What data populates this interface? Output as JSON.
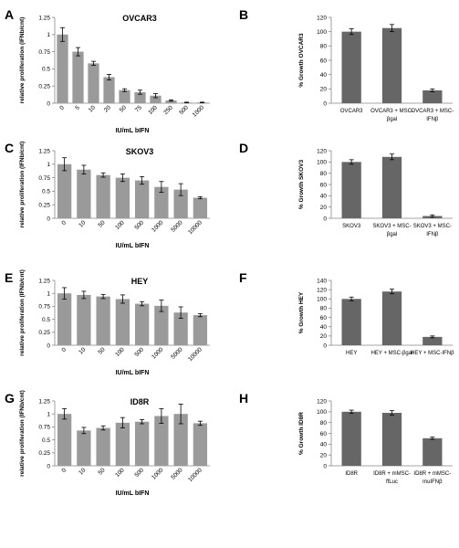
{
  "chart_data": [
    {
      "panel": "A",
      "type": "bar",
      "title": "OVCAR3",
      "xlabel": "IU/mL bIFN",
      "ylabel": "relative proliferation (IFNb/cnt)",
      "categories": [
        "0",
        "5",
        "10",
        "20",
        "50",
        "75",
        "100",
        "250",
        "500",
        "1000"
      ],
      "values": [
        1.0,
        0.75,
        0.58,
        0.38,
        0.19,
        0.16,
        0.11,
        0.04,
        0.01,
        0.01
      ],
      "errors": [
        0.1,
        0.06,
        0.03,
        0.04,
        0.02,
        0.03,
        0.03,
        0.01,
        0.005,
        0.005
      ],
      "ylim": [
        0,
        1.25
      ],
      "yticks": [
        0,
        0.25,
        0.5,
        0.75,
        1,
        1.25
      ],
      "ytick_labels": [
        "0",
        "0.25",
        "0.5",
        "0.75",
        "1",
        "1.25"
      ],
      "bar_color": "#9a9a9a",
      "rotated_x": true
    },
    {
      "panel": "B",
      "type": "bar",
      "title": "",
      "xlabel": "",
      "ylabel": "% Growth OVCAR3",
      "categories": [
        [
          "OVCAR3"
        ],
        [
          "OVCAR3 + MSC-",
          "βgal"
        ],
        [
          "OVCAR3 + MSC-",
          "IFNβ"
        ]
      ],
      "values": [
        100,
        105,
        18
      ],
      "errors": [
        4,
        5,
        2
      ],
      "ylim": [
        0,
        120
      ],
      "yticks": [
        0,
        20,
        40,
        60,
        80,
        100,
        120
      ],
      "ytick_labels": [
        "0",
        "20",
        "40",
        "60",
        "80",
        "100",
        "120"
      ],
      "bar_color": "#666666",
      "rotated_x": false
    },
    {
      "panel": "C",
      "type": "bar",
      "title": "SKOV3",
      "xlabel": "IU/mL bIFN",
      "ylabel": "relative proliferation (IFNb/cnt)",
      "categories": [
        "0",
        "10",
        "50",
        "100",
        "500",
        "1000",
        "5000",
        "10000"
      ],
      "values": [
        1.0,
        0.9,
        0.8,
        0.75,
        0.7,
        0.58,
        0.53,
        0.38
      ],
      "errors": [
        0.12,
        0.08,
        0.04,
        0.07,
        0.07,
        0.1,
        0.11,
        0.02
      ],
      "ylim": [
        0,
        1.25
      ],
      "yticks": [
        0,
        0.25,
        0.5,
        0.75,
        1,
        1.25
      ],
      "ytick_labels": [
        "0",
        "0.25",
        "0.5",
        "0.75",
        "1",
        "1.25"
      ],
      "bar_color": "#9a9a9a",
      "rotated_x": true
    },
    {
      "panel": "D",
      "type": "bar",
      "title": "",
      "xlabel": "",
      "ylabel": "% Growth SKOV3",
      "categories": [
        [
          "SKOV3"
        ],
        [
          "SKOV3 + MSC-",
          "βgal"
        ],
        [
          "SKOV3 + MSC-",
          "IFNβ"
        ]
      ],
      "values": [
        100,
        109,
        4
      ],
      "errors": [
        4,
        5,
        2
      ],
      "ylim": [
        0,
        120
      ],
      "yticks": [
        0,
        20,
        40,
        60,
        80,
        100,
        120
      ],
      "ytick_labels": [
        "0",
        "20",
        "40",
        "60",
        "80",
        "100",
        "120"
      ],
      "bar_color": "#666666",
      "rotated_x": false
    },
    {
      "panel": "E",
      "type": "bar",
      "title": "HEY",
      "xlabel": "IU/mL bIFN",
      "ylabel": "relative proliferation (IFNb/cnt)",
      "categories": [
        "0",
        "10",
        "50",
        "100",
        "500",
        "1000",
        "5000",
        "10000"
      ],
      "values": [
        1.0,
        0.97,
        0.94,
        0.89,
        0.8,
        0.76,
        0.63,
        0.58
      ],
      "errors": [
        0.11,
        0.07,
        0.04,
        0.08,
        0.04,
        0.11,
        0.11,
        0.03
      ],
      "ylim": [
        0,
        1.25
      ],
      "yticks": [
        0,
        0.25,
        0.5,
        0.75,
        1,
        1.25
      ],
      "ytick_labels": [
        "0",
        "0.25",
        "0.5",
        "0.75",
        "1",
        "1.25"
      ],
      "bar_color": "#9a9a9a",
      "rotated_x": true
    },
    {
      "panel": "F",
      "type": "bar",
      "title": "",
      "xlabel": "",
      "ylabel": "% Growth HEY",
      "categories": [
        [
          "HEY"
        ],
        [
          "HEY + MSC-βgal"
        ],
        [
          "HEY + MSC-IFNβ"
        ]
      ],
      "values": [
        100,
        116,
        18
      ],
      "errors": [
        4,
        5,
        2
      ],
      "ylim": [
        0,
        140
      ],
      "yticks": [
        0,
        20,
        40,
        60,
        80,
        100,
        120,
        140
      ],
      "ytick_labels": [
        "0",
        "20",
        "40",
        "60",
        "80",
        "100",
        "120",
        "140"
      ],
      "bar_color": "#666666",
      "rotated_x": false
    },
    {
      "panel": "G",
      "type": "bar",
      "title": "ID8R",
      "xlabel": "IU/mL bIFN",
      "ylabel": "relative proliferation (IFNb/cnt)",
      "categories": [
        "0",
        "10",
        "50",
        "100",
        "500",
        "1000",
        "5000",
        "10000"
      ],
      "values": [
        1.0,
        0.68,
        0.73,
        0.83,
        0.85,
        0.96,
        1.0,
        0.82
      ],
      "errors": [
        0.1,
        0.06,
        0.04,
        0.1,
        0.04,
        0.14,
        0.19,
        0.04
      ],
      "ylim": [
        0,
        1.25
      ],
      "yticks": [
        0,
        0.25,
        0.5,
        0.75,
        1,
        1.25
      ],
      "ytick_labels": [
        "0",
        "0.25",
        "0.5",
        "0.75",
        "1",
        "1.25"
      ],
      "bar_color": "#9a9a9a",
      "rotated_x": true
    },
    {
      "panel": "H",
      "type": "bar",
      "title": "",
      "xlabel": "",
      "ylabel": "% Growth ID8R",
      "categories": [
        [
          "ID8R"
        ],
        [
          "ID8R + mMSC-",
          "ffLuc"
        ],
        [
          "ID8R + mMSC-",
          "muIFNβ"
        ]
      ],
      "values": [
        100,
        98,
        51
      ],
      "errors": [
        3,
        4,
        2
      ],
      "ylim": [
        0,
        120
      ],
      "yticks": [
        0,
        20,
        40,
        60,
        80,
        100,
        120
      ],
      "ytick_labels": [
        "0",
        "20",
        "40",
        "60",
        "80",
        "100",
        "120"
      ],
      "bar_color": "#666666",
      "rotated_x": false
    }
  ]
}
